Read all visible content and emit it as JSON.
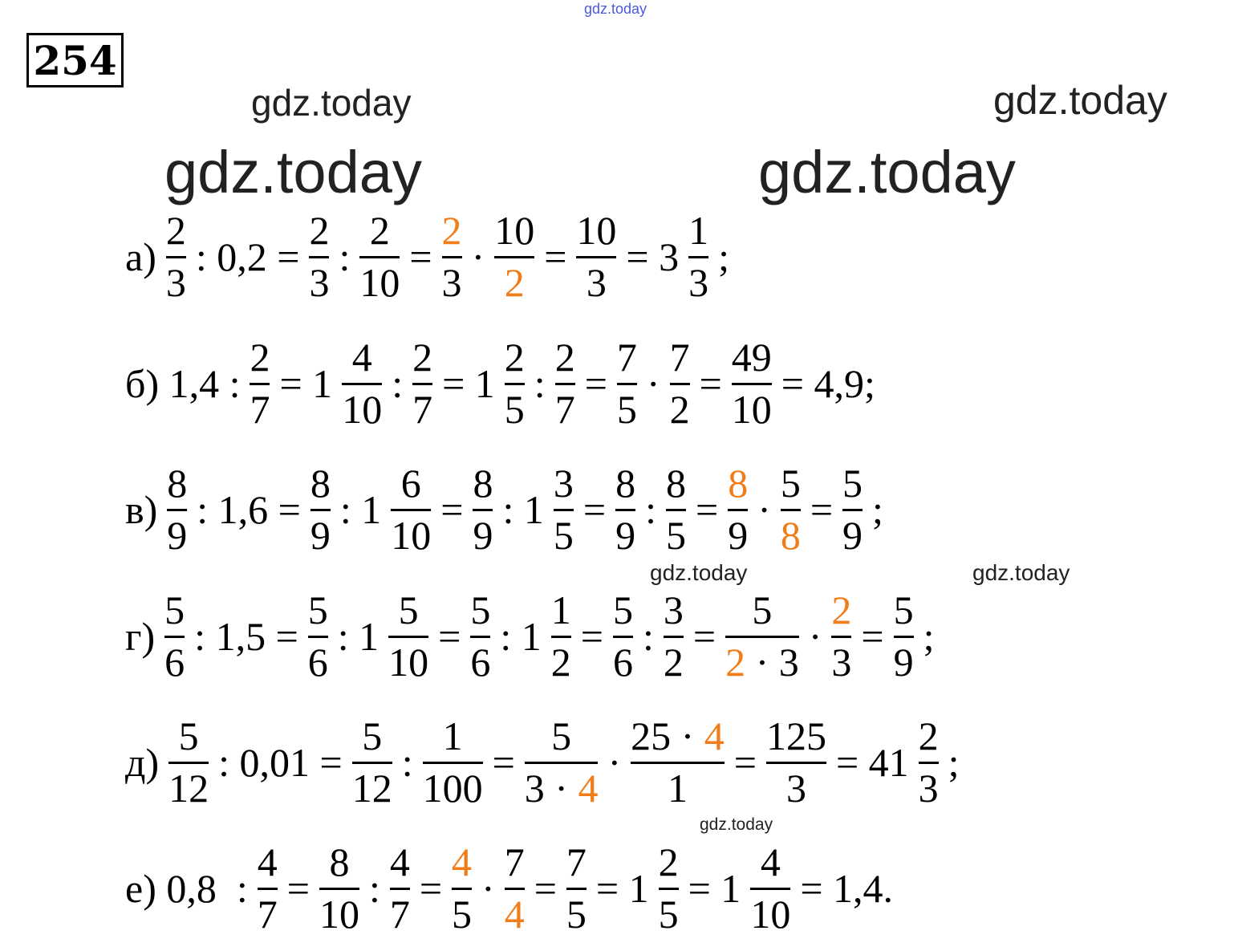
{
  "problem_number": "254",
  "watermarks": [
    "gdz.today",
    "gdz.today",
    "gdz.today",
    "gdz.today",
    "gdz.today",
    "gdz.today",
    "gdz.today",
    "gdz.today"
  ],
  "accent_color": "#f07d1a",
  "rows": [
    {
      "label": "а)",
      "tokens": [
        {
          "t": "а)"
        },
        {
          "n": "2",
          "d": "3"
        },
        {
          "t": ": 0,2 ="
        },
        {
          "n": "2",
          "d": "3"
        },
        {
          "t": ":"
        },
        {
          "n": "2",
          "d": "10"
        },
        {
          "t": "="
        },
        {
          "n": [
            [
              "2",
              1
            ]
          ],
          "d": "3"
        },
        {
          "t": "·"
        },
        {
          "n": "10",
          "d": [
            [
              "2",
              1
            ]
          ]
        },
        {
          "t": "="
        },
        {
          "n": "10",
          "d": "3"
        },
        {
          "t": "= 3"
        },
        {
          "n": "1",
          "d": "3"
        },
        {
          "t": ";"
        }
      ]
    },
    {
      "label": "б)",
      "tokens": [
        {
          "t": "б) 1,4 :"
        },
        {
          "n": "2",
          "d": "7"
        },
        {
          "t": "= 1"
        },
        {
          "n": "4",
          "d": "10"
        },
        {
          "t": ":"
        },
        {
          "n": "2",
          "d": "7"
        },
        {
          "t": "= 1"
        },
        {
          "n": "2",
          "d": "5"
        },
        {
          "t": ":"
        },
        {
          "n": "2",
          "d": "7"
        },
        {
          "t": "="
        },
        {
          "n": "7",
          "d": "5"
        },
        {
          "t": "·"
        },
        {
          "n": "7",
          "d": "2"
        },
        {
          "t": "="
        },
        {
          "n": "49",
          "d": "10"
        },
        {
          "t": "= 4,9;"
        }
      ]
    },
    {
      "label": "в)",
      "tokens": [
        {
          "t": "в)"
        },
        {
          "n": "8",
          "d": "9"
        },
        {
          "t": ": 1,6 ="
        },
        {
          "n": "8",
          "d": "9"
        },
        {
          "t": ": 1"
        },
        {
          "n": "6",
          "d": "10"
        },
        {
          "t": "="
        },
        {
          "n": "8",
          "d": "9"
        },
        {
          "t": ": 1"
        },
        {
          "n": "3",
          "d": "5"
        },
        {
          "t": "="
        },
        {
          "n": "8",
          "d": "9"
        },
        {
          "t": ":"
        },
        {
          "n": "8",
          "d": "5"
        },
        {
          "t": "="
        },
        {
          "n": [
            [
              "8",
              1
            ]
          ],
          "d": "9"
        },
        {
          "t": "·"
        },
        {
          "n": "5",
          "d": [
            [
              "8",
              1
            ]
          ]
        },
        {
          "t": "="
        },
        {
          "n": "5",
          "d": "9"
        },
        {
          "t": ";"
        }
      ]
    },
    {
      "label": "г)",
      "tokens": [
        {
          "t": "г)"
        },
        {
          "n": "5",
          "d": "6"
        },
        {
          "t": ": 1,5 ="
        },
        {
          "n": "5",
          "d": "6"
        },
        {
          "t": ": 1"
        },
        {
          "n": "5",
          "d": "10"
        },
        {
          "t": "="
        },
        {
          "n": "5",
          "d": "6"
        },
        {
          "t": ": 1"
        },
        {
          "n": "1",
          "d": "2"
        },
        {
          "t": "="
        },
        {
          "n": "5",
          "d": "6"
        },
        {
          "t": ":"
        },
        {
          "n": "3",
          "d": "2"
        },
        {
          "t": "="
        },
        {
          "n": "5",
          "d": [
            [
              "2",
              1
            ],
            [
              " · 3",
              0
            ]
          ]
        },
        {
          "t": "·"
        },
        {
          "n": [
            [
              "2",
              1
            ]
          ],
          "d": "3"
        },
        {
          "t": "="
        },
        {
          "n": "5",
          "d": "9"
        },
        {
          "t": ";"
        }
      ]
    },
    {
      "label": "д)",
      "tokens": [
        {
          "t": "д)"
        },
        {
          "n": "5",
          "d": "12"
        },
        {
          "t": ": 0,01 ="
        },
        {
          "n": "5",
          "d": "12"
        },
        {
          "t": ":"
        },
        {
          "n": "1",
          "d": "100"
        },
        {
          "t": "="
        },
        {
          "n": "5",
          "d": [
            [
              "3 · ",
              0
            ],
            [
              "4",
              1
            ]
          ]
        },
        {
          "t": "·"
        },
        {
          "n": [
            [
              "25 · ",
              0
            ],
            [
              "4",
              1
            ]
          ],
          "d": "1"
        },
        {
          "t": "="
        },
        {
          "n": "125",
          "d": "3"
        },
        {
          "t": "= 41"
        },
        {
          "n": "2",
          "d": "3"
        },
        {
          "t": ";"
        }
      ]
    },
    {
      "label": "е)",
      "tokens": [
        {
          "t": "е) 0,8  :"
        },
        {
          "n": "4",
          "d": "7"
        },
        {
          "t": "="
        },
        {
          "n": "8",
          "d": "10"
        },
        {
          "t": ":"
        },
        {
          "n": "4",
          "d": "7"
        },
        {
          "t": "="
        },
        {
          "n": [
            [
              "4",
              1
            ]
          ],
          "d": "5"
        },
        {
          "t": "·"
        },
        {
          "n": "7",
          "d": [
            [
              "4",
              1
            ]
          ]
        },
        {
          "t": "="
        },
        {
          "n": "7",
          "d": "5"
        },
        {
          "t": "= 1"
        },
        {
          "n": "2",
          "d": "5"
        },
        {
          "t": "= 1"
        },
        {
          "n": "4",
          "d": "10"
        },
        {
          "t": "= 1,4."
        }
      ]
    }
  ]
}
